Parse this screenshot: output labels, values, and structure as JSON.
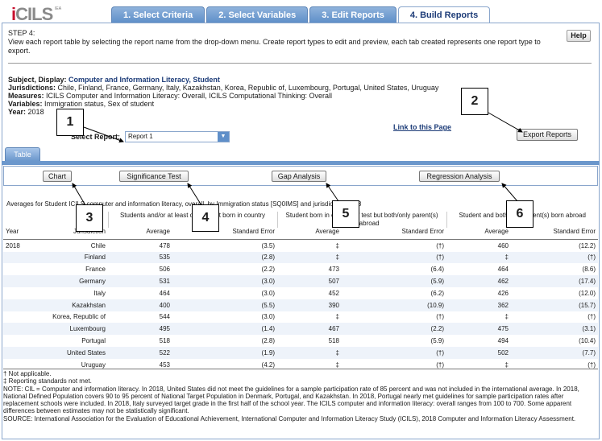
{
  "logo": {
    "text": "CILS",
    "sub": "IEA"
  },
  "tabs": [
    "1. Select Criteria",
    "2. Select Variables",
    "3. Edit Reports",
    "4. Build Reports"
  ],
  "step": {
    "title": "STEP 4:",
    "description": "View each report table by selecting the report name from the drop-down menu. Create report types to edit and preview, each tab created represents one report type to export.",
    "help_label": "Help"
  },
  "meta": {
    "subject_label": "Subject, Display:",
    "subject_value": "Computer and Information Literacy, Student",
    "jurisdictions_label": "Jurisdictions:",
    "jurisdictions_value": "Chile, Finland, France, Germany, Italy, Kazakhstan, Korea, Republic of, Luxembourg, Portugal, United States, Uruguay",
    "measures_label": "Measures:",
    "measures_value": "ICILS Computer and Information Literacy: Overall, ICILS Computational Thinking: Overall",
    "variables_label": "Variables:",
    "variables_value": "Immigration status, Sex of student",
    "year_label": "Year:",
    "year_value": "2018"
  },
  "select_report": {
    "label": "Select Report:",
    "value": "Report 1"
  },
  "link_label": "Link to this Page",
  "export_label": "Export Reports",
  "table_tab_label": "Table",
  "tools": {
    "chart": "Chart",
    "significance": "Significance Test",
    "gap": "Gap Analysis",
    "regression": "Regression Analysis"
  },
  "caption": "Averages for Student ICILS computer and information literacy, overall, by Immigration status [SQ0IMS] and jurisdiction: 2018",
  "table": {
    "group_headers": [
      "Students and/or at least one parent born in country",
      "Student born in country of test but both/only parent(s) born abroad",
      "Student and both/only parent(s) born abroad"
    ],
    "col_year": "Year",
    "col_jurisdiction": "Jurisdiction",
    "col_avg": "Average",
    "col_se": "Standard Error",
    "rows": [
      {
        "year": "2018",
        "jur": "Chile",
        "a1": "478",
        "s1": "(3.5)",
        "a2": "‡",
        "s2": "(†)",
        "a3": "460",
        "s3": "(12.2)"
      },
      {
        "year": "",
        "jur": "Finland",
        "a1": "535",
        "s1": "(2.8)",
        "a2": "‡",
        "s2": "(†)",
        "a3": "‡",
        "s3": "(†)"
      },
      {
        "year": "",
        "jur": "France",
        "a1": "506",
        "s1": "(2.2)",
        "a2": "473",
        "s2": "(6.4)",
        "a3": "464",
        "s3": "(8.6)"
      },
      {
        "year": "",
        "jur": "Germany",
        "a1": "531",
        "s1": "(3.0)",
        "a2": "507",
        "s2": "(5.9)",
        "a3": "462",
        "s3": "(17.4)"
      },
      {
        "year": "",
        "jur": "Italy",
        "a1": "464",
        "s1": "(3.0)",
        "a2": "452",
        "s2": "(6.2)",
        "a3": "426",
        "s3": "(12.0)"
      },
      {
        "year": "",
        "jur": "Kazakhstan",
        "a1": "400",
        "s1": "(5.5)",
        "a2": "390",
        "s2": "(10.9)",
        "a3": "362",
        "s3": "(15.7)"
      },
      {
        "year": "",
        "jur": "Korea, Republic of",
        "a1": "544",
        "s1": "(3.0)",
        "a2": "‡",
        "s2": "(†)",
        "a3": "‡",
        "s3": "(†)"
      },
      {
        "year": "",
        "jur": "Luxembourg",
        "a1": "495",
        "s1": "(1.4)",
        "a2": "467",
        "s2": "(2.2)",
        "a3": "475",
        "s3": "(3.1)"
      },
      {
        "year": "",
        "jur": "Portugal",
        "a1": "518",
        "s1": "(2.8)",
        "a2": "518",
        "s2": "(5.9)",
        "a3": "494",
        "s3": "(10.4)"
      },
      {
        "year": "",
        "jur": "United States",
        "a1": "522",
        "s1": "(1.9)",
        "a2": "‡",
        "s2": "(†)",
        "a3": "502",
        "s3": "(7.7)"
      },
      {
        "year": "",
        "jur": "Uruguay",
        "a1": "453",
        "s1": "(4.2)",
        "a2": "‡",
        "s2": "(†)",
        "a3": "‡",
        "s3": "(†)"
      }
    ]
  },
  "notes": [
    "† Not applicable.",
    "‡ Reporting standards not met.",
    "NOTE: CIL = Computer and information literacy. In 2018, United States did not meet the guidelines for a sample participation rate of 85 percent and was not included in the international average. In 2018, National Defined Population covers 90 to 95 percent of National Target Population in Denmark, Portugal, and Kazakhstan. In 2018, Portugal nearly met guidelines for sample participation rates after replacement schools were included. In 2018, Italy surveyed target grade in the first half of the school year. The ICILS computer and information literacy: overall ranges from 100 to 700. Some apparent differences between estimates may not be statistically significant.",
    "SOURCE: International Association for the Evaluation of Educational Achievement, International Computer and Information Literacy Study (ICILS), 2018 Computer and Information Literacy Assessment."
  ],
  "callouts": [
    "1",
    "2",
    "3",
    "4",
    "5",
    "6"
  ]
}
